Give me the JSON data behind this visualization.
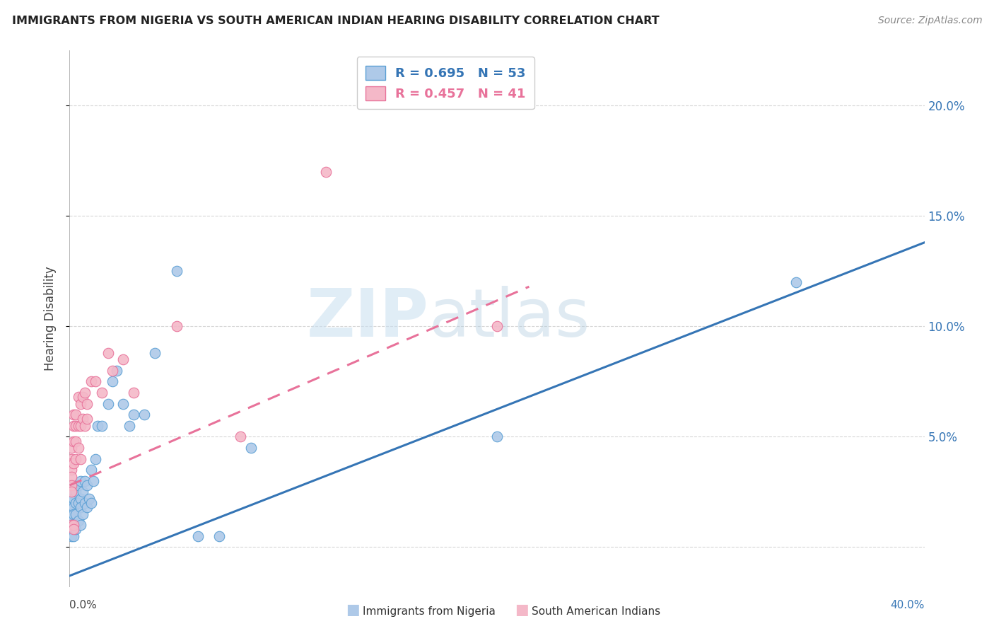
{
  "title": "IMMIGRANTS FROM NIGERIA VS SOUTH AMERICAN INDIAN HEARING DISABILITY CORRELATION CHART",
  "source": "Source: ZipAtlas.com",
  "ylabel": "Hearing Disability",
  "ytick_labels": [
    "",
    "5.0%",
    "10.0%",
    "15.0%",
    "20.0%"
  ],
  "ytick_values": [
    0.0,
    0.05,
    0.1,
    0.15,
    0.2
  ],
  "xlim": [
    0.0,
    0.4
  ],
  "ylim": [
    -0.018,
    0.225
  ],
  "nigeria_color": "#aec9e8",
  "nigeria_edge": "#5a9fd4",
  "south_american_color": "#f4b8c8",
  "south_american_edge": "#e8729a",
  "regression_nigeria_color": "#3575b5",
  "regression_south_american_color": "#e8729a",
  "legend_R_nigeria": "R = 0.695",
  "legend_N_nigeria": "N = 53",
  "legend_R_south": "R = 0.457",
  "legend_N_south": "N = 41",
  "nigeria_line_x": [
    0.0,
    0.4
  ],
  "nigeria_line_y": [
    -0.013,
    0.138
  ],
  "south_line_x": [
    0.0,
    0.215
  ],
  "south_line_y": [
    0.028,
    0.118
  ],
  "nigeria_x": [
    0.001,
    0.001,
    0.001,
    0.001,
    0.001,
    0.001,
    0.001,
    0.001,
    0.001,
    0.002,
    0.002,
    0.002,
    0.002,
    0.002,
    0.002,
    0.003,
    0.003,
    0.003,
    0.003,
    0.004,
    0.004,
    0.004,
    0.005,
    0.005,
    0.005,
    0.005,
    0.006,
    0.006,
    0.007,
    0.007,
    0.008,
    0.008,
    0.009,
    0.01,
    0.01,
    0.011,
    0.012,
    0.013,
    0.015,
    0.018,
    0.02,
    0.022,
    0.025,
    0.028,
    0.03,
    0.035,
    0.04,
    0.05,
    0.06,
    0.07,
    0.085,
    0.34,
    0.2
  ],
  "nigeria_y": [
    0.025,
    0.022,
    0.02,
    0.018,
    0.015,
    0.013,
    0.01,
    0.008,
    0.005,
    0.028,
    0.022,
    0.018,
    0.015,
    0.01,
    0.005,
    0.025,
    0.02,
    0.015,
    0.008,
    0.028,
    0.02,
    0.012,
    0.03,
    0.022,
    0.018,
    0.01,
    0.025,
    0.015,
    0.03,
    0.02,
    0.028,
    0.018,
    0.022,
    0.035,
    0.02,
    0.03,
    0.04,
    0.055,
    0.055,
    0.065,
    0.075,
    0.08,
    0.065,
    0.055,
    0.06,
    0.06,
    0.088,
    0.125,
    0.005,
    0.005,
    0.045,
    0.12,
    0.05
  ],
  "south_x": [
    0.001,
    0.001,
    0.001,
    0.001,
    0.001,
    0.001,
    0.001,
    0.002,
    0.002,
    0.002,
    0.002,
    0.003,
    0.003,
    0.003,
    0.003,
    0.004,
    0.004,
    0.004,
    0.005,
    0.005,
    0.005,
    0.006,
    0.006,
    0.007,
    0.007,
    0.008,
    0.008,
    0.01,
    0.012,
    0.015,
    0.018,
    0.02,
    0.025,
    0.03,
    0.05,
    0.08,
    0.12,
    0.2,
    0.001,
    0.002,
    0.002
  ],
  "south_y": [
    0.045,
    0.04,
    0.038,
    0.035,
    0.032,
    0.028,
    0.025,
    0.06,
    0.055,
    0.048,
    0.038,
    0.06,
    0.055,
    0.048,
    0.04,
    0.068,
    0.055,
    0.045,
    0.065,
    0.055,
    0.04,
    0.068,
    0.058,
    0.07,
    0.055,
    0.065,
    0.058,
    0.075,
    0.075,
    0.07,
    0.088,
    0.08,
    0.085,
    0.07,
    0.1,
    0.05,
    0.17,
    0.1,
    0.01,
    0.01,
    0.008
  ],
  "watermark_zip": "ZIP",
  "watermark_atlas": "atlas",
  "background_color": "#ffffff",
  "grid_color": "#cccccc"
}
